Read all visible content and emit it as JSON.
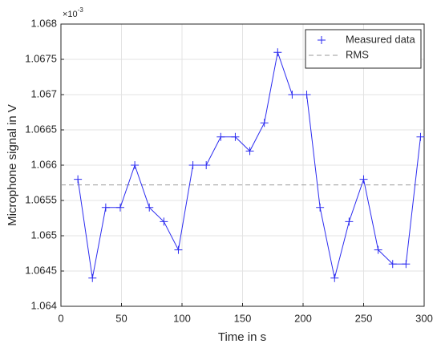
{
  "chart_data": {
    "type": "line",
    "xlabel": "Time in s",
    "ylabel": "Microphone signal in V",
    "y_multiplier": "×10",
    "y_multiplier_exponent": "-3",
    "x": [
      14,
      26,
      37,
      49,
      61,
      73,
      85,
      97,
      109,
      120,
      132,
      144,
      156,
      168,
      179,
      191,
      203,
      214,
      226,
      238,
      250,
      262,
      274,
      285,
      297
    ],
    "series": [
      {
        "name": "Measured data",
        "color": "#2b2bf0",
        "marker": "+",
        "values": [
          1.0658,
          1.0644,
          1.0654,
          1.0654,
          1.066,
          1.0654,
          1.0652,
          1.0648,
          1.066,
          1.066,
          1.0664,
          1.0664,
          1.0662,
          1.0666,
          1.0676,
          1.067,
          1.067,
          1.0654,
          1.0644,
          1.0652,
          1.0658,
          1.0648,
          1.0646,
          1.0646,
          1.0664
        ]
      }
    ],
    "reference_lines": [
      {
        "name": "RMS",
        "value": 1.06572,
        "color": "#9a9a9a"
      }
    ],
    "xlim": [
      0,
      300
    ],
    "xticks": [
      0,
      50,
      100,
      150,
      200,
      250,
      300
    ],
    "ylim": [
      1.064,
      1.068
    ],
    "yticks": [
      1.064,
      1.0645,
      1.065,
      1.0655,
      1.066,
      1.0665,
      1.067,
      1.0675,
      1.068
    ],
    "grid": true,
    "legend": "northeast"
  }
}
